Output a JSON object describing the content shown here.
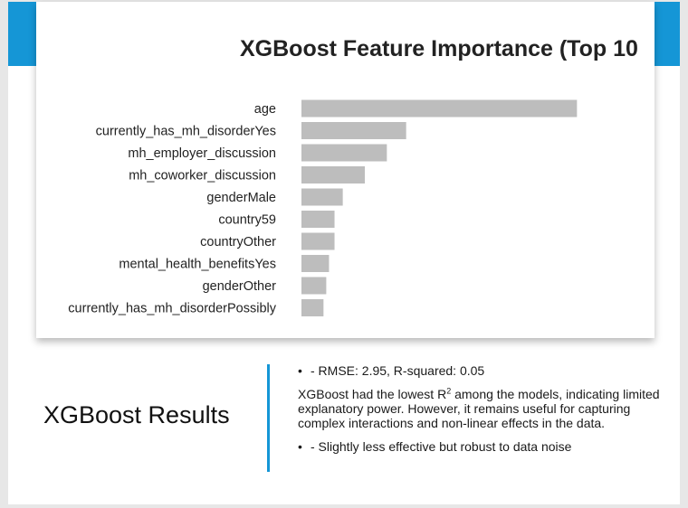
{
  "slide": {
    "section_title": "XGBoost Results",
    "accent_color": "#1596d6",
    "bullet_1": "- RMSE: 2.95, R-squared: 0.05",
    "paragraph": {
      "before": "XGBoost had the lowest R",
      "superscript": "2",
      "after": " among the models, indicating limited explanatory power. However, it remains useful for capturing complex interactions and non-linear effects in the data."
    },
    "bullet_2": "- Slightly less effective but robust to data noise",
    "bullet_symbol": "•"
  },
  "chart_data": {
    "type": "bar",
    "orientation": "horizontal",
    "title": "XGBoost Feature Importance (Top 10",
    "bar_color": "#bdbdbd",
    "categories": [
      "age",
      "currently_has_mh_disorderYes",
      "mh_employer_discussion",
      "mh_coworker_discussion",
      "genderMale",
      "country59",
      "countryOther",
      "mental_health_benefitsYes",
      "genderOther",
      "currently_has_mh_disorderPossibly"
    ],
    "values": [
      1.0,
      0.38,
      0.31,
      0.23,
      0.15,
      0.12,
      0.12,
      0.1,
      0.09,
      0.08
    ],
    "xlim": [
      0,
      1.15
    ],
    "grid": false,
    "legend": "none"
  }
}
